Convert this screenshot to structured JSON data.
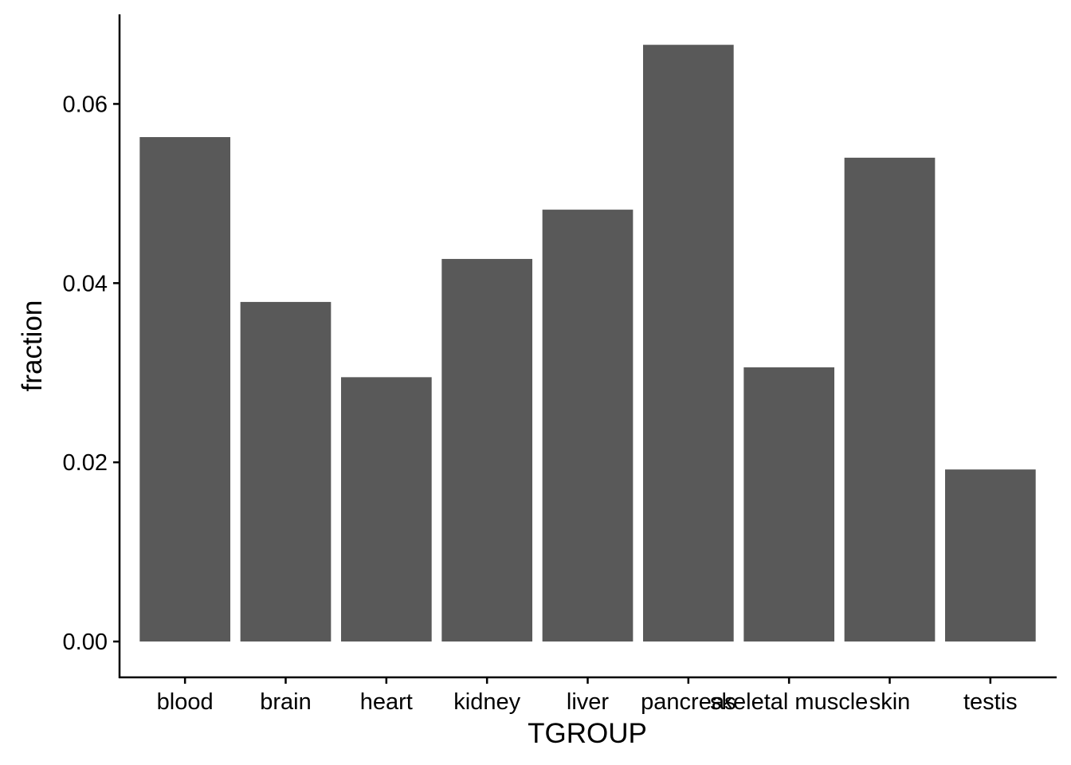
{
  "chart_data": {
    "type": "bar",
    "title": "",
    "xlabel": "TGROUP",
    "ylabel": "fraction",
    "categories": [
      "blood",
      "brain",
      "heart",
      "kidney",
      "liver",
      "pancreas",
      "skeletal muscle",
      "skin",
      "testis"
    ],
    "values": [
      0.0563,
      0.0379,
      0.0295,
      0.0427,
      0.0482,
      0.0666,
      0.0306,
      0.054,
      0.0192
    ],
    "ylim": [
      -0.004,
      0.07
    ],
    "yticks": [
      0.0,
      0.02,
      0.04,
      0.06
    ],
    "ytick_labels": [
      "0.00",
      "0.02",
      "0.04",
      "0.06"
    ],
    "grid": false,
    "legend": "none",
    "bar_color": "#595959"
  }
}
